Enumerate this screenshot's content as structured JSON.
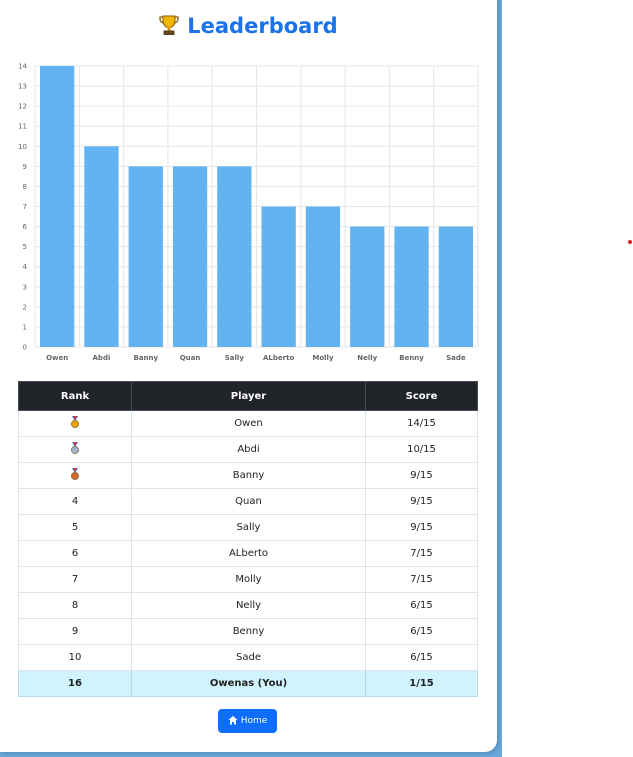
{
  "header": {
    "title": "Leaderboard",
    "trophy_icon": "trophy-icon"
  },
  "chart_data": {
    "type": "bar",
    "categories": [
      "Owen",
      "Abdi",
      "Banny",
      "Quan",
      "Sally",
      "ALberto",
      "Molly",
      "Nelly",
      "Benny",
      "Sade"
    ],
    "values": [
      14,
      10,
      9,
      9,
      9,
      7,
      7,
      6,
      6,
      6
    ],
    "ylim": [
      0,
      14
    ],
    "yticks": [
      0,
      1,
      2,
      3,
      4,
      5,
      6,
      7,
      8,
      9,
      10,
      11,
      12,
      13,
      14
    ],
    "grid": true,
    "color": "#63b3f0"
  },
  "table": {
    "headers": [
      "Rank",
      "Player",
      "Score"
    ],
    "rows": [
      {
        "rank": "",
        "medal": "gold",
        "player": "Owen",
        "score": "14/15"
      },
      {
        "rank": "",
        "medal": "silver",
        "player": "Abdi",
        "score": "10/15"
      },
      {
        "rank": "",
        "medal": "bronze",
        "player": "Banny",
        "score": "9/15"
      },
      {
        "rank": "4",
        "player": "Quan",
        "score": "9/15"
      },
      {
        "rank": "5",
        "player": "Sally",
        "score": "9/15"
      },
      {
        "rank": "6",
        "player": "ALberto",
        "score": "7/15"
      },
      {
        "rank": "7",
        "player": "Molly",
        "score": "7/15"
      },
      {
        "rank": "8",
        "player": "Nelly",
        "score": "6/15"
      },
      {
        "rank": "9",
        "player": "Benny",
        "score": "6/15"
      },
      {
        "rank": "10",
        "player": "Sade",
        "score": "6/15"
      }
    ],
    "you": {
      "rank": "16",
      "player": "Owenas (You)",
      "score": "1/15"
    }
  },
  "home_button": {
    "label": "Home",
    "icon": "home-icon"
  },
  "colors": {
    "accent": "#1a73e8",
    "button": "#0d6efd",
    "you_row": "#cff4fc"
  }
}
